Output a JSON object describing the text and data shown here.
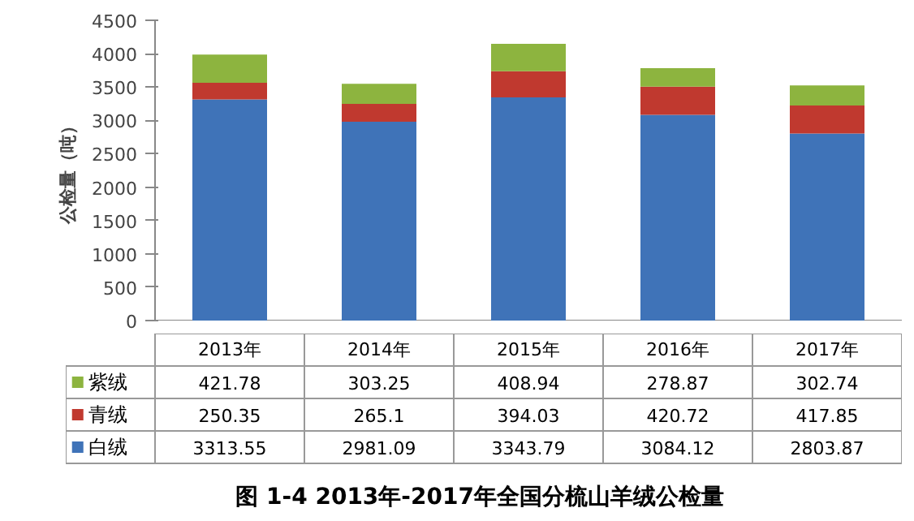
{
  "chart_data": {
    "type": "bar",
    "title": "图 1-4  2013年-2017年全国分梳山羊绒公检量",
    "ylabel": "公检量（吨）",
    "categories": [
      "2013年",
      "2014年",
      "2015年",
      "2016年",
      "2017年"
    ],
    "stacked": true,
    "data_labels": true,
    "legend": "bottom",
    "grid": false,
    "ylim": [
      0,
      4500
    ],
    "yticks": [
      0,
      500,
      1000,
      1500,
      2000,
      2500,
      3000,
      3500,
      4000,
      4500
    ],
    "series": [
      {
        "name": "白绒",
        "color": "#3f73b8",
        "values": [
          3313.55,
          2981.09,
          3343.79,
          3084.12,
          2803.87
        ]
      },
      {
        "name": "青绒",
        "color": "#c0392f",
        "values": [
          250.35,
          265.1,
          394.03,
          420.72,
          417.85
        ]
      },
      {
        "name": "紫绒",
        "color": "#8db43f",
        "values": [
          421.78,
          303.25,
          408.94,
          278.87,
          302.74
        ]
      }
    ]
  }
}
